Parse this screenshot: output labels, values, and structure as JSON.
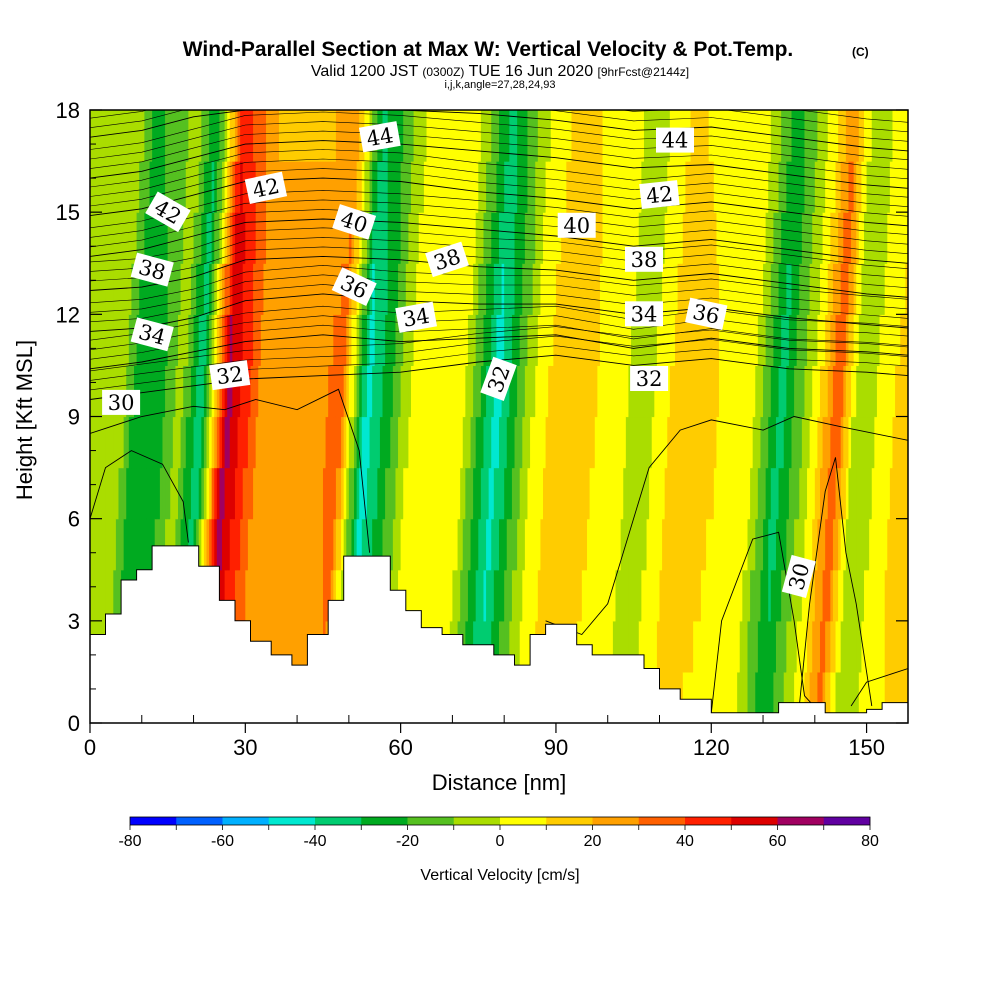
{
  "chart_data": {
    "type": "heatmap",
    "title": "Wind-Parallel Section at Max W: Vertical Velocity & Pot.Temp.",
    "copyright": "(C)",
    "subtitle_prefix": "Valid 1200 JST",
    "subtitle_utc": "(0300Z)",
    "subtitle_date": "TUE 16 Jun 2020",
    "subtitle_fcst": "[9hrFcst@2144z]",
    "subtitle2": "i,j,k,angle=27,28,24,93",
    "xlabel": "Distance [nm]",
    "ylabel": "Height [Kft MSL]",
    "xlim": [
      0,
      158
    ],
    "ylim": [
      0,
      18
    ],
    "x_ticks": [
      0,
      30,
      60,
      90,
      120,
      150
    ],
    "x_tick_labels": [
      "0",
      "30",
      "60",
      "90",
      "120",
      "150"
    ],
    "y_ticks": [
      0,
      3,
      6,
      9,
      12,
      15,
      18
    ],
    "y_tick_labels": [
      "0",
      "3",
      "6",
      "9",
      "12",
      "15",
      "18"
    ],
    "colorbar": {
      "label": "Vertical Velocity [cm/s]",
      "min": -80,
      "max": 80,
      "step": 10,
      "tick_values": [
        -80,
        -60,
        -40,
        -20,
        0,
        20,
        40,
        60,
        80
      ],
      "tick_labels": [
        "-80",
        "-60",
        "-40",
        "-20",
        "0",
        "20",
        "40",
        "60",
        "80"
      ],
      "colors": [
        "#0000ff",
        "#0060ff",
        "#00b0ff",
        "#00e8d0",
        "#00cc70",
        "#00aa20",
        "#55c020",
        "#aadd00",
        "#ffff00",
        "#ffcc00",
        "#ffa000",
        "#ff6000",
        "#ff2000",
        "#dd0000",
        "#a00060",
        "#6000a0"
      ]
    },
    "vertical_velocity_bands": [
      {
        "x": 0,
        "w": -10,
        "note": "left edge"
      },
      {
        "x": 5,
        "w": 0
      },
      {
        "x": 9,
        "w": -30
      },
      {
        "x": 14,
        "w": -20
      },
      {
        "x": 17,
        "w": -5
      },
      {
        "x": 21,
        "w": -40
      },
      {
        "x": 26,
        "w": 65
      },
      {
        "x": 33,
        "w": 25
      },
      {
        "x": 43,
        "w": 25
      },
      {
        "x": 48,
        "w": 35
      },
      {
        "x": 53,
        "w": -45
      },
      {
        "x": 57,
        "w": -25
      },
      {
        "x": 63,
        "w": 10
      },
      {
        "x": 72,
        "w": 0
      },
      {
        "x": 78,
        "w": -45
      },
      {
        "x": 86,
        "w": 5
      },
      {
        "x": 92,
        "w": 20
      },
      {
        "x": 100,
        "w": 5
      },
      {
        "x": 107,
        "w": -5
      },
      {
        "x": 113,
        "w": 15
      },
      {
        "x": 121,
        "w": 10
      },
      {
        "x": 128,
        "w": 0
      },
      {
        "x": 133,
        "w": -35
      },
      {
        "x": 140,
        "w": 5
      },
      {
        "x": 144,
        "w": 40
      },
      {
        "x": 148,
        "w": -10
      },
      {
        "x": 155,
        "w": 10
      },
      {
        "x": 158,
        "w": 15
      }
    ],
    "terrain": [
      {
        "x": 0,
        "h": 2.6
      },
      {
        "x": 3,
        "h": 3.2
      },
      {
        "x": 6,
        "h": 4.2
      },
      {
        "x": 9,
        "h": 4.5
      },
      {
        "x": 12,
        "h": 5.2
      },
      {
        "x": 21,
        "h": 4.6
      },
      {
        "x": 25,
        "h": 3.6
      },
      {
        "x": 28,
        "h": 3.0
      },
      {
        "x": 31,
        "h": 2.4
      },
      {
        "x": 35,
        "h": 2.0
      },
      {
        "x": 39,
        "h": 1.7
      },
      {
        "x": 42,
        "h": 2.6
      },
      {
        "x": 46,
        "h": 3.6
      },
      {
        "x": 49,
        "h": 4.9
      },
      {
        "x": 58,
        "h": 3.9
      },
      {
        "x": 61,
        "h": 3.3
      },
      {
        "x": 64,
        "h": 2.8
      },
      {
        "x": 68,
        "h": 2.6
      },
      {
        "x": 72,
        "h": 2.3
      },
      {
        "x": 78,
        "h": 2.0
      },
      {
        "x": 82,
        "h": 1.7
      },
      {
        "x": 85,
        "h": 2.6
      },
      {
        "x": 88,
        "h": 2.9
      },
      {
        "x": 94,
        "h": 2.3
      },
      {
        "x": 97,
        "h": 2.0
      },
      {
        "x": 107,
        "h": 1.6
      },
      {
        "x": 110,
        "h": 1.0
      },
      {
        "x": 114,
        "h": 0.7
      },
      {
        "x": 120,
        "h": 0.3
      },
      {
        "x": 133,
        "h": 0.6
      },
      {
        "x": 142,
        "h": 0.3
      },
      {
        "x": 150,
        "h": 0.4
      },
      {
        "x": 153,
        "h": 0.6
      },
      {
        "x": 158,
        "h": 0.6
      }
    ],
    "isentropes": [
      {
        "theta": 30,
        "points": [
          [
            0,
            9.5
          ],
          [
            10,
            9.7
          ],
          [
            20,
            9.9
          ],
          [
            30,
            10.1
          ],
          [
            45,
            10.2
          ],
          [
            60,
            10.3
          ],
          [
            75,
            10.6
          ],
          [
            90,
            10.8
          ],
          [
            105,
            10.5
          ],
          [
            120,
            10.7
          ],
          [
            135,
            10.4
          ],
          [
            150,
            10.3
          ],
          [
            158,
            10.2
          ]
        ]
      },
      {
        "theta": 32,
        "points": [
          [
            0,
            10.4
          ],
          [
            10,
            10.6
          ],
          [
            20,
            10.9
          ],
          [
            30,
            11.2
          ],
          [
            45,
            11.4
          ],
          [
            60,
            11.2
          ],
          [
            75,
            11.3
          ],
          [
            90,
            11.4
          ],
          [
            105,
            11.0
          ],
          [
            120,
            11.3
          ],
          [
            135,
            11.0
          ],
          [
            150,
            10.9
          ],
          [
            158,
            10.8
          ]
        ]
      },
      {
        "theta": 34,
        "points": [
          [
            0,
            11.5
          ],
          [
            10,
            11.6
          ],
          [
            20,
            11.9
          ],
          [
            30,
            12.4
          ],
          [
            45,
            12.6
          ],
          [
            60,
            12.4
          ],
          [
            75,
            12.3
          ],
          [
            90,
            12.3
          ],
          [
            105,
            12.0
          ],
          [
            120,
            12.2
          ],
          [
            135,
            11.9
          ],
          [
            150,
            11.7
          ],
          [
            158,
            11.6
          ]
        ]
      },
      {
        "theta": 36,
        "points": [
          [
            0,
            12.7
          ],
          [
            10,
            12.8
          ],
          [
            20,
            13.1
          ],
          [
            30,
            13.6
          ],
          [
            45,
            13.7
          ],
          [
            60,
            13.6
          ],
          [
            75,
            13.4
          ],
          [
            90,
            13.3
          ],
          [
            105,
            13.0
          ],
          [
            120,
            13.2
          ],
          [
            135,
            12.9
          ],
          [
            150,
            12.6
          ],
          [
            158,
            12.5
          ]
        ]
      },
      {
        "theta": 38,
        "points": [
          [
            0,
            13.7
          ],
          [
            10,
            13.9
          ],
          [
            20,
            14.3
          ],
          [
            30,
            14.7
          ],
          [
            45,
            14.8
          ],
          [
            60,
            14.7
          ],
          [
            75,
            14.5
          ],
          [
            90,
            14.3
          ],
          [
            105,
            14.0
          ],
          [
            120,
            14.2
          ],
          [
            135,
            13.9
          ],
          [
            150,
            13.6
          ],
          [
            158,
            13.5
          ]
        ]
      },
      {
        "theta": 40,
        "points": [
          [
            0,
            14.9
          ],
          [
            10,
            15.1
          ],
          [
            20,
            15.5
          ],
          [
            30,
            15.9
          ],
          [
            45,
            16.0
          ],
          [
            60,
            15.9
          ],
          [
            75,
            15.6
          ],
          [
            90,
            15.4
          ],
          [
            105,
            15.1
          ],
          [
            120,
            15.3
          ],
          [
            135,
            15.0
          ],
          [
            150,
            14.7
          ],
          [
            158,
            14.6
          ]
        ]
      },
      {
        "theta": 42,
        "points": [
          [
            0,
            16.0
          ],
          [
            10,
            16.2
          ],
          [
            20,
            16.6
          ],
          [
            30,
            17.0
          ],
          [
            45,
            17.1
          ],
          [
            60,
            17.0
          ],
          [
            75,
            16.8
          ],
          [
            90,
            16.6
          ],
          [
            105,
            16.3
          ],
          [
            120,
            16.4
          ],
          [
            135,
            16.1
          ],
          [
            150,
            15.8
          ],
          [
            158,
            15.7
          ]
        ]
      },
      {
        "theta": 44,
        "points": [
          [
            0,
            17.2
          ],
          [
            10,
            17.4
          ],
          [
            20,
            17.8
          ],
          [
            30,
            18.0
          ],
          [
            60,
            18.0
          ],
          [
            75,
            17.9
          ],
          [
            90,
            17.7
          ],
          [
            105,
            17.4
          ],
          [
            120,
            17.5
          ],
          [
            135,
            17.2
          ],
          [
            150,
            16.9
          ],
          [
            158,
            16.8
          ]
        ]
      }
    ],
    "low_contours": [
      {
        "theta": 30,
        "points": [
          [
            0,
            6.0
          ],
          [
            3,
            7.5
          ],
          [
            8,
            8.0
          ],
          [
            14,
            7.6
          ],
          [
            18,
            6.5
          ],
          [
            19,
            5.3
          ]
        ]
      },
      {
        "theta": 30,
        "points": [
          [
            0,
            8.5
          ],
          [
            10,
            9.0
          ],
          [
            20,
            9.3
          ],
          [
            26,
            9.2
          ],
          [
            32,
            9.5
          ],
          [
            40,
            9.2
          ],
          [
            48,
            9.8
          ],
          [
            52,
            8.0
          ],
          [
            54,
            5.0
          ]
        ]
      },
      {
        "theta": 30,
        "points": [
          [
            88,
            3.0
          ],
          [
            95,
            2.6
          ],
          [
            100,
            3.5
          ],
          [
            104,
            5.5
          ],
          [
            108,
            7.5
          ],
          [
            114,
            8.6
          ],
          [
            120,
            8.9
          ],
          [
            130,
            8.6
          ],
          [
            136,
            9.0
          ],
          [
            145,
            8.7
          ],
          [
            158,
            8.3
          ]
        ]
      },
      {
        "theta": 30,
        "points": [
          [
            120,
            0.3
          ],
          [
            122,
            3.0
          ],
          [
            128,
            5.4
          ],
          [
            133,
            5.6
          ],
          [
            136,
            3.0
          ],
          [
            138,
            0.8
          ],
          [
            141,
            0.3
          ]
        ]
      },
      {
        "theta": 30,
        "points": [
          [
            137,
            0.5
          ],
          [
            139,
            3.5
          ],
          [
            142,
            6.8
          ],
          [
            144,
            7.8
          ],
          [
            146,
            5.0
          ],
          [
            148,
            3.5
          ],
          [
            150,
            1.5
          ],
          [
            151,
            0.5
          ]
        ]
      },
      {
        "theta": 30,
        "points": [
          [
            147,
            0.5
          ],
          [
            150,
            1.2
          ],
          [
            154,
            1.4
          ],
          [
            158,
            1.6
          ]
        ]
      }
    ],
    "contour_labels": [
      {
        "text": "30",
        "x": 6,
        "y": 9.4,
        "angle": 0
      },
      {
        "text": "32",
        "x": 27,
        "y": 10.2,
        "angle": -8
      },
      {
        "text": "32",
        "x": 79,
        "y": 10.1,
        "angle": -70
      },
      {
        "text": "32",
        "x": 108,
        "y": 10.1,
        "angle": 0
      },
      {
        "text": "34",
        "x": 12,
        "y": 11.4,
        "angle": 15
      },
      {
        "text": "34",
        "x": 63,
        "y": 11.9,
        "angle": -10
      },
      {
        "text": "34",
        "x": 107,
        "y": 12.0,
        "angle": 0
      },
      {
        "text": "36",
        "x": 51,
        "y": 12.8,
        "angle": 25
      },
      {
        "text": "36",
        "x": 119,
        "y": 12.0,
        "angle": 12
      },
      {
        "text": "38",
        "x": 12,
        "y": 13.3,
        "angle": 15
      },
      {
        "text": "38",
        "x": 69,
        "y": 13.6,
        "angle": -18
      },
      {
        "text": "38",
        "x": 107,
        "y": 13.6,
        "angle": 0
      },
      {
        "text": "40",
        "x": 51,
        "y": 14.7,
        "angle": 18
      },
      {
        "text": "40",
        "x": 94,
        "y": 14.6,
        "angle": 0
      },
      {
        "text": "42",
        "x": 15,
        "y": 15.0,
        "angle": 30
      },
      {
        "text": "42",
        "x": 34,
        "y": 15.7,
        "angle": -12
      },
      {
        "text": "42",
        "x": 110,
        "y": 15.5,
        "angle": -6
      },
      {
        "text": "44",
        "x": 56,
        "y": 17.2,
        "angle": -10
      },
      {
        "text": "44",
        "x": 113,
        "y": 17.1,
        "angle": 0
      },
      {
        "text": "30",
        "x": 137,
        "y": 4.3,
        "angle": -75
      }
    ],
    "grid": false
  }
}
